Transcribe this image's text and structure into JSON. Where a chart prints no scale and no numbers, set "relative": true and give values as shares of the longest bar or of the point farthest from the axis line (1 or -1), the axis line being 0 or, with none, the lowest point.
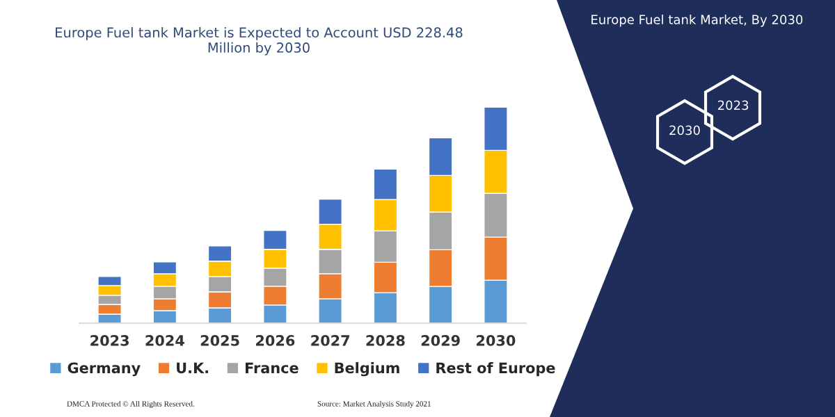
{
  "chart_data": {
    "type": "bar",
    "title": "Europe Fuel tank Market is Expected to Account USD 228.48 Million by 2030",
    "categories": [
      "2023",
      "2024",
      "2025",
      "2026",
      "2027",
      "2028",
      "2029",
      "2030"
    ],
    "stacked": true,
    "relative": true,
    "legend": "bottom",
    "grid": false,
    "series": [
      {
        "name": "Germany",
        "color": "#5b9bd5",
        "values": [
          0.042,
          0.058,
          0.071,
          0.084,
          0.113,
          0.141,
          0.17,
          0.199
        ]
      },
      {
        "name": "U.K.",
        "color": "#ed7d31",
        "values": [
          0.045,
          0.055,
          0.074,
          0.087,
          0.116,
          0.141,
          0.17,
          0.199
        ]
      },
      {
        "name": "France",
        "color": "#a5a5a5",
        "values": [
          0.042,
          0.058,
          0.071,
          0.084,
          0.113,
          0.145,
          0.174,
          0.203
        ]
      },
      {
        "name": "Belgium",
        "color": "#ffc000",
        "values": [
          0.045,
          0.058,
          0.071,
          0.087,
          0.116,
          0.145,
          0.17,
          0.199
        ]
      },
      {
        "name": "Rest of Europe",
        "color": "#4472c4",
        "values": [
          0.042,
          0.055,
          0.071,
          0.087,
          0.116,
          0.141,
          0.174,
          0.2
        ]
      }
    ],
    "annotations": [
      "Europe Fuel tank Market, By 2030",
      "2023",
      "2030",
      "DMCA Protected © All Rights Reserved.",
      "Source: Market Analysis Study 2021"
    ]
  }
}
